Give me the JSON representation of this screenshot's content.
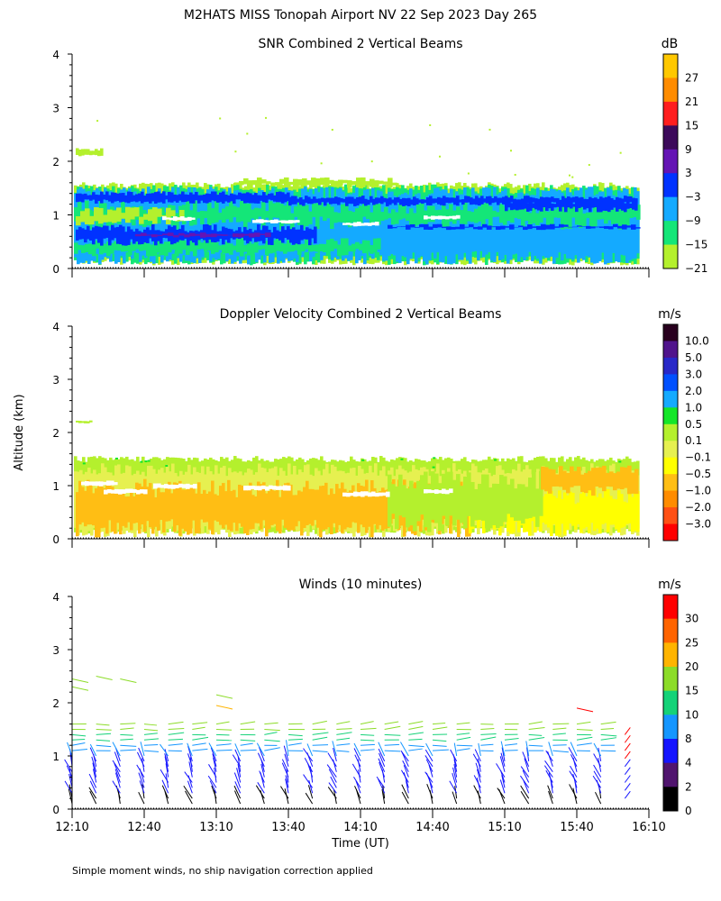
{
  "figure": {
    "title": "M2HATS MISS Tonopah Airport NV  22 Sep 2023 Day 265",
    "ylabel": "Altitude (km)",
    "xlabel": "Time (UT)",
    "footnote": "Simple moment winds, no ship navigation correction applied",
    "x_tick_labels": [
      "12:10",
      "12:40",
      "13:10",
      "13:40",
      "14:10",
      "14:40",
      "15:10",
      "15:40",
      "16:10"
    ]
  },
  "chart_data": [
    {
      "type": "heatmap",
      "title": "SNR Combined 2 Vertical Beams",
      "units": "dB",
      "x_range": [
        "12:10",
        "16:10"
      ],
      "y_range": [
        0,
        4
      ],
      "y_ticks": [
        0,
        1,
        2,
        3,
        4
      ],
      "colorbar_labels": [
        "27",
        "21",
        "15",
        "9",
        "3",
        "−3",
        "−9",
        "−15",
        "−21"
      ],
      "colorbar_colors": [
        "#ffc800",
        "#ff8c00",
        "#ff1e1e",
        "#3c0a5a",
        "#6414b4",
        "#0032ff",
        "#14aaff",
        "#14e678",
        "#b4f02d"
      ],
      "description_values": {
        "data_top_km": 1.55,
        "strong_layer_low_km": 0.6,
        "strong_layer_mid_km": 1.3,
        "isolated_echo_km": 2.15
      }
    },
    {
      "type": "heatmap",
      "title": "Doppler Velocity Combined 2 Vertical Beams",
      "units": "m/s",
      "x_range": [
        "12:10",
        "16:10"
      ],
      "y_range": [
        0,
        4
      ],
      "y_ticks": [
        0,
        1,
        2,
        3,
        4
      ],
      "colorbar_labels": [
        "10.0",
        "5.0",
        "3.0",
        "2.0",
        "1.0",
        "0.5",
        "0.1",
        "−0.1",
        "−0.5",
        "−1.0",
        "−2.0",
        "−3.0"
      ],
      "colorbar_colors": [
        "#28001e",
        "#50148c",
        "#2828c8",
        "#0050ff",
        "#14aaff",
        "#14e628",
        "#b4f02d",
        "#e6f050",
        "#ffff00",
        "#ffbe14",
        "#ff8c00",
        "#ff5014",
        "#ff0000"
      ]
    },
    {
      "type": "scatter",
      "title": "Winds (10 minutes)",
      "units": "m/s",
      "x_range": [
        "12:10",
        "16:10"
      ],
      "y_range": [
        0,
        4
      ],
      "y_ticks": [
        0,
        1,
        2,
        3,
        4
      ],
      "colorbar_labels": [
        "30",
        "25",
        "20",
        "15",
        "10",
        "8",
        "4",
        "2",
        "0"
      ],
      "colorbar_colors": [
        "#ff0000",
        "#ff6400",
        "#ffb400",
        "#8cdc28",
        "#14d278",
        "#1496ff",
        "#1414ff",
        "#50146e",
        "#000000"
      ]
    }
  ]
}
